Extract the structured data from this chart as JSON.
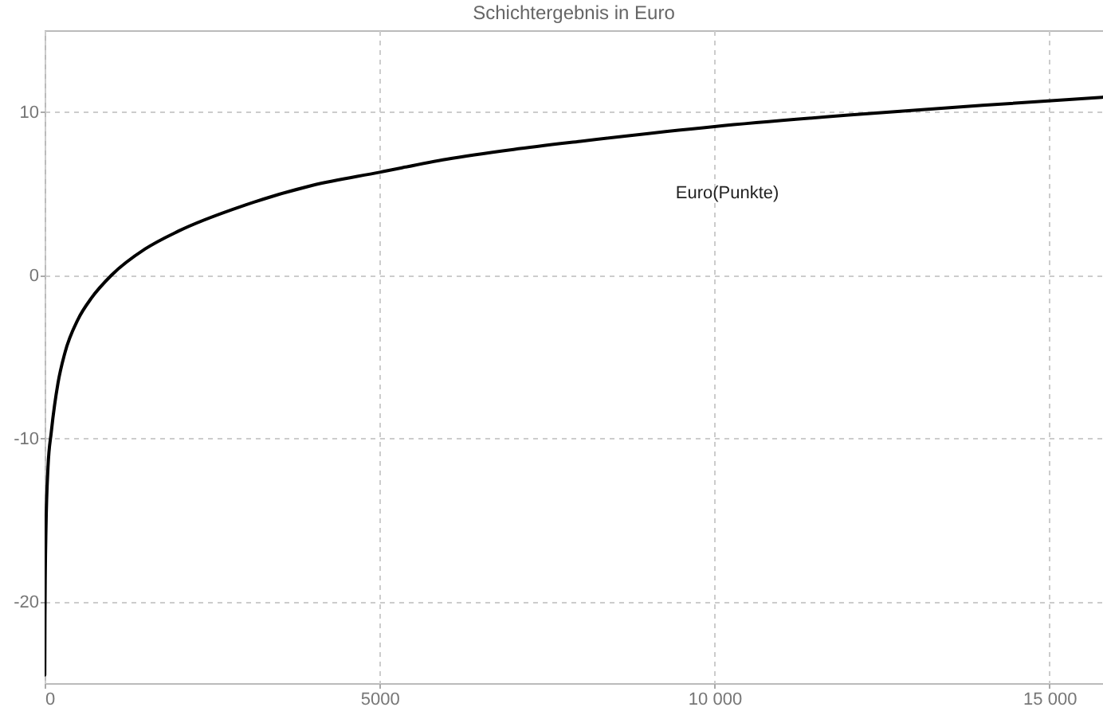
{
  "chart_data": {
    "type": "line",
    "title": "Schichtergebnis in Euro",
    "x": [
      2,
      5,
      10,
      20,
      50,
      100,
      200,
      300,
      500,
      700,
      1000,
      1500,
      2000,
      3000,
      4000,
      5000,
      6000,
      7000,
      8000,
      10000,
      12000,
      14000,
      15800
    ],
    "series": [
      {
        "color": "#000000",
        "values": [
          -24.5,
          -20.9,
          -18.2,
          -15.5,
          -11.8,
          -9.6,
          -6.6,
          -4.8,
          -2.7,
          -1.4,
          0,
          1.6,
          2.7,
          4.3,
          5.5,
          6.3,
          7.1,
          7.7,
          8.2,
          9.1,
          9.8,
          10.4,
          10.9
        ]
      }
    ],
    "xlim": [
      0,
      15800
    ],
    "xticks": [
      0,
      5000,
      {
        "value": 10000,
        "label": "10 000"
      },
      {
        "value": 15000,
        "label": "15 000"
      }
    ],
    "ylim": [
      -25,
      15
    ],
    "yticks": [
      -20,
      -10,
      0,
      10
    ],
    "grid": true,
    "marker": "none",
    "line_style": "solid",
    "annotations": [
      "Euro(Punkte)"
    ]
  }
}
